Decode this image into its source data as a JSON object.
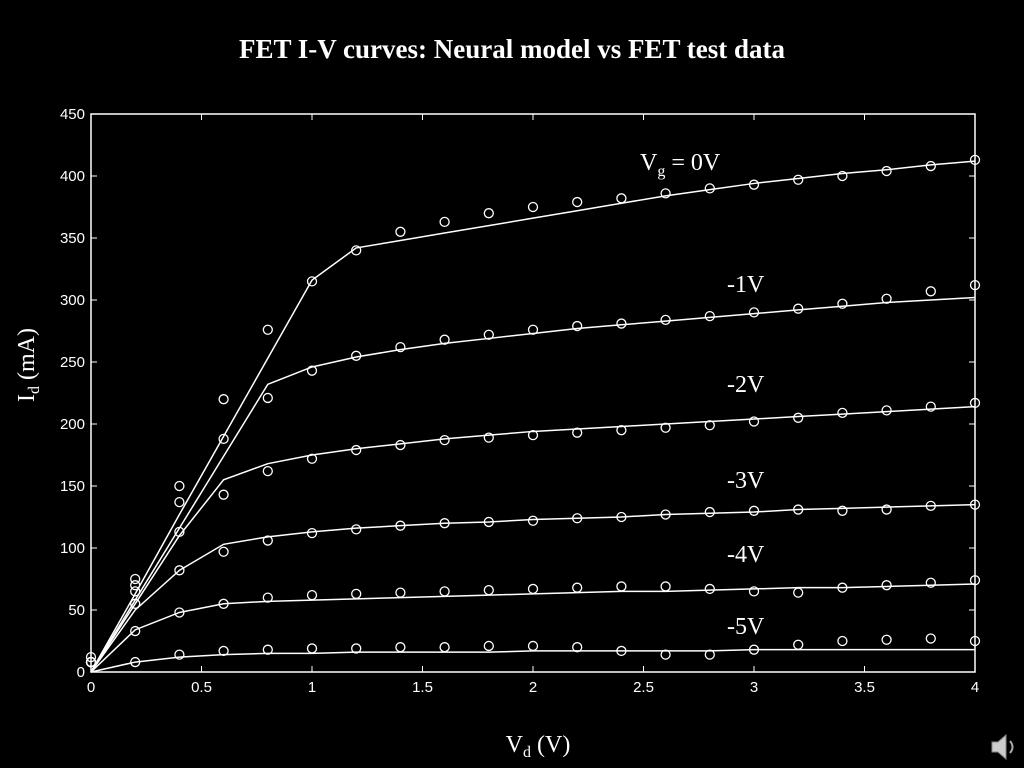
{
  "chart_data": {
    "type": "line",
    "title": "FET I-V curves: Neural model vs FET test data",
    "x_label": {
      "symbol": "V",
      "subscript": "d",
      "text": " (V)"
    },
    "y_label": {
      "symbol": "I",
      "subscript": "d",
      "text": " (mA)"
    },
    "gate_label": {
      "symbol": "V",
      "subscript": "g",
      "text": " =  0V"
    },
    "color": "#ffffff",
    "xlim": [
      0,
      4
    ],
    "xticks": [
      0,
      0.5,
      1,
      1.5,
      2,
      2.5,
      3,
      3.5,
      4
    ],
    "ylim": [
      0,
      450
    ],
    "yticks": [
      0,
      50,
      100,
      150,
      200,
      250,
      300,
      350,
      400,
      450
    ],
    "x": [
      0,
      0.2,
      0.4,
      0.6,
      0.8,
      1,
      1.2,
      1.4,
      1.6,
      1.8,
      2,
      2.2,
      2.4,
      2.6,
      2.8,
      3,
      3.2,
      3.4,
      3.6,
      3.8,
      4
    ],
    "series": [
      {
        "values": [
          0,
          63,
          127,
          190,
          253,
          316,
          342,
          348,
          354,
          360,
          366,
          372,
          378,
          384,
          389,
          394,
          398,
          402,
          405,
          409,
          412
        ],
        "measured": [
          8,
          75,
          150,
          220,
          276,
          315,
          340,
          355,
          363,
          370,
          375,
          379,
          382,
          386,
          390,
          393,
          397,
          400,
          404,
          408,
          413
        ]
      },
      {
        "name": "-1V",
        "values": [
          0,
          58,
          116,
          174,
          232,
          246,
          254,
          260,
          265,
          269,
          273,
          277,
          280,
          283,
          286,
          289,
          292,
          295,
          298,
          300,
          302
        ],
        "measured": [
          8,
          70,
          137,
          188,
          221,
          243,
          255,
          262,
          268,
          272,
          276,
          279,
          281,
          284,
          287,
          290,
          293,
          297,
          301,
          307,
          312
        ]
      },
      {
        "name": "-2V",
        "values": [
          0,
          55,
          110,
          155,
          168,
          175,
          180,
          184,
          188,
          191,
          194,
          196,
          198,
          200,
          202,
          204,
          206,
          208,
          210,
          212,
          214
        ],
        "measured": [
          8,
          65,
          113,
          143,
          162,
          172,
          179,
          183,
          187,
          189,
          191,
          193,
          195,
          197,
          199,
          202,
          205,
          209,
          211,
          214,
          217
        ]
      },
      {
        "name": "-3V",
        "values": [
          0,
          50,
          82,
          103,
          109,
          113,
          116,
          118,
          120,
          121,
          123,
          124,
          125,
          127,
          128,
          129,
          131,
          132,
          133,
          134,
          135
        ],
        "measured": [
          8,
          55,
          82,
          97,
          106,
          112,
          115,
          118,
          120,
          121,
          122,
          124,
          125,
          127,
          129,
          130,
          131,
          130,
          131,
          134,
          135
        ]
      },
      {
        "name": "-4V",
        "values": [
          0,
          34,
          48,
          55,
          57,
          58,
          59,
          60,
          61,
          62,
          63,
          64,
          65,
          65,
          66,
          67,
          68,
          68,
          69,
          70,
          71
        ],
        "measured": [
          8,
          33,
          48,
          55,
          60,
          62,
          63,
          64,
          65,
          66,
          67,
          68,
          69,
          69,
          67,
          65,
          64,
          68,
          70,
          72,
          74
        ]
      },
      {
        "name": "-5V",
        "values": [
          0,
          8,
          12,
          14,
          15,
          15,
          16,
          16,
          16,
          16,
          17,
          17,
          17,
          17,
          17,
          18,
          18,
          18,
          18,
          18,
          18
        ],
        "measured": [
          12,
          8,
          14,
          17,
          18,
          19,
          19,
          20,
          20,
          21,
          21,
          20,
          17,
          14,
          14,
          18,
          22,
          25,
          26,
          27,
          25
        ]
      }
    ]
  }
}
